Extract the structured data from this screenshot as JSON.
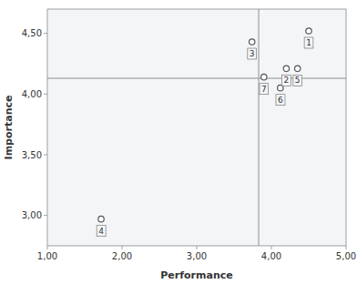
{
  "chart_data": {
    "type": "scatter",
    "xlabel": "Performance",
    "ylabel": "Importance",
    "x": [
      4.5,
      4.2,
      3.74,
      1.72,
      4.35,
      4.12,
      3.9
    ],
    "values": [
      4.52,
      4.21,
      4.43,
      2.97,
      4.21,
      4.05,
      4.14
    ],
    "annotations": [
      "1",
      "2",
      "3",
      "4",
      "5",
      "6",
      "7"
    ],
    "crosshair": {
      "x": 3.83,
      "y": 4.13
    },
    "xlim": [
      1.0,
      5.0
    ],
    "ylim": [
      2.75,
      4.7
    ],
    "xticks": [
      {
        "value": 1.0,
        "label": "1,00"
      },
      {
        "value": 2.0,
        "label": "2,00"
      },
      {
        "value": 3.0,
        "label": "3,00"
      },
      {
        "value": 4.0,
        "label": "4,00"
      },
      {
        "value": 5.0,
        "label": "5,00"
      }
    ],
    "yticks": [
      {
        "value": 3.0,
        "label": "3,00"
      },
      {
        "value": 3.5,
        "label": "3,50"
      },
      {
        "value": 4.0,
        "label": "4,00"
      },
      {
        "value": 4.5,
        "label": "4,50"
      }
    ],
    "color": "#555555",
    "grid": false
  }
}
